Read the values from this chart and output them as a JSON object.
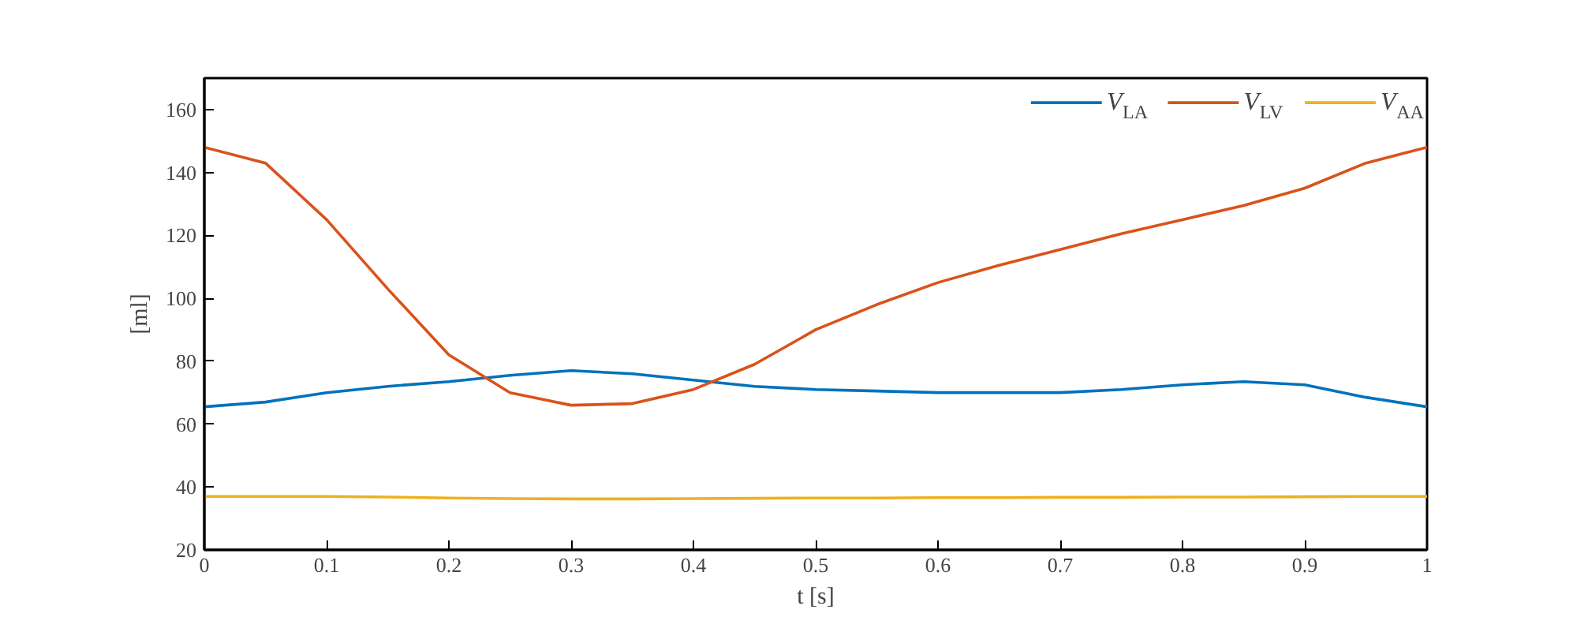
{
  "chart_data": {
    "type": "line",
    "xlabel": "t [s]",
    "ylabel": "[ml]",
    "x": [
      0,
      0.05,
      0.1,
      0.15,
      0.2,
      0.25,
      0.3,
      0.35,
      0.4,
      0.45,
      0.5,
      0.55,
      0.6,
      0.65,
      0.7,
      0.75,
      0.8,
      0.85,
      0.9,
      0.95,
      1
    ],
    "series": [
      {
        "name": "V$_{LA}$",
        "color": "#0072bd",
        "values": [
          65.5,
          67,
          70,
          72,
          73.5,
          75.5,
          77,
          76,
          74,
          72,
          71,
          70.5,
          70,
          70,
          70,
          71,
          72.5,
          73.5,
          72.5,
          68.5,
          65.5
        ]
      },
      {
        "name": "V$_{LV}$",
        "color": "#d95319",
        "values": [
          148,
          143,
          125,
          103,
          82,
          70,
          66,
          66.5,
          71,
          79,
          90,
          98,
          105,
          110.5,
          115.5,
          120.5,
          125,
          129.5,
          135,
          143,
          148
        ]
      },
      {
        "name": "V$_{AA}$",
        "color": "#edb120",
        "values": [
          37,
          37,
          37,
          36.8,
          36.5,
          36.3,
          36.2,
          36.2,
          36.3,
          36.4,
          36.5,
          36.5,
          36.6,
          36.6,
          36.7,
          36.7,
          36.8,
          36.8,
          36.9,
          37,
          37
        ]
      }
    ],
    "xlim": [
      0,
      1
    ],
    "xticks": [
      0,
      0.1,
      0.2,
      0.3,
      0.4,
      0.5,
      0.6,
      0.7,
      0.8,
      0.9,
      1
    ],
    "ylim": [
      20,
      170
    ],
    "yticks": [
      20,
      40,
      60,
      80,
      100,
      120,
      140,
      160
    ],
    "grid": false,
    "legend": "top right"
  }
}
